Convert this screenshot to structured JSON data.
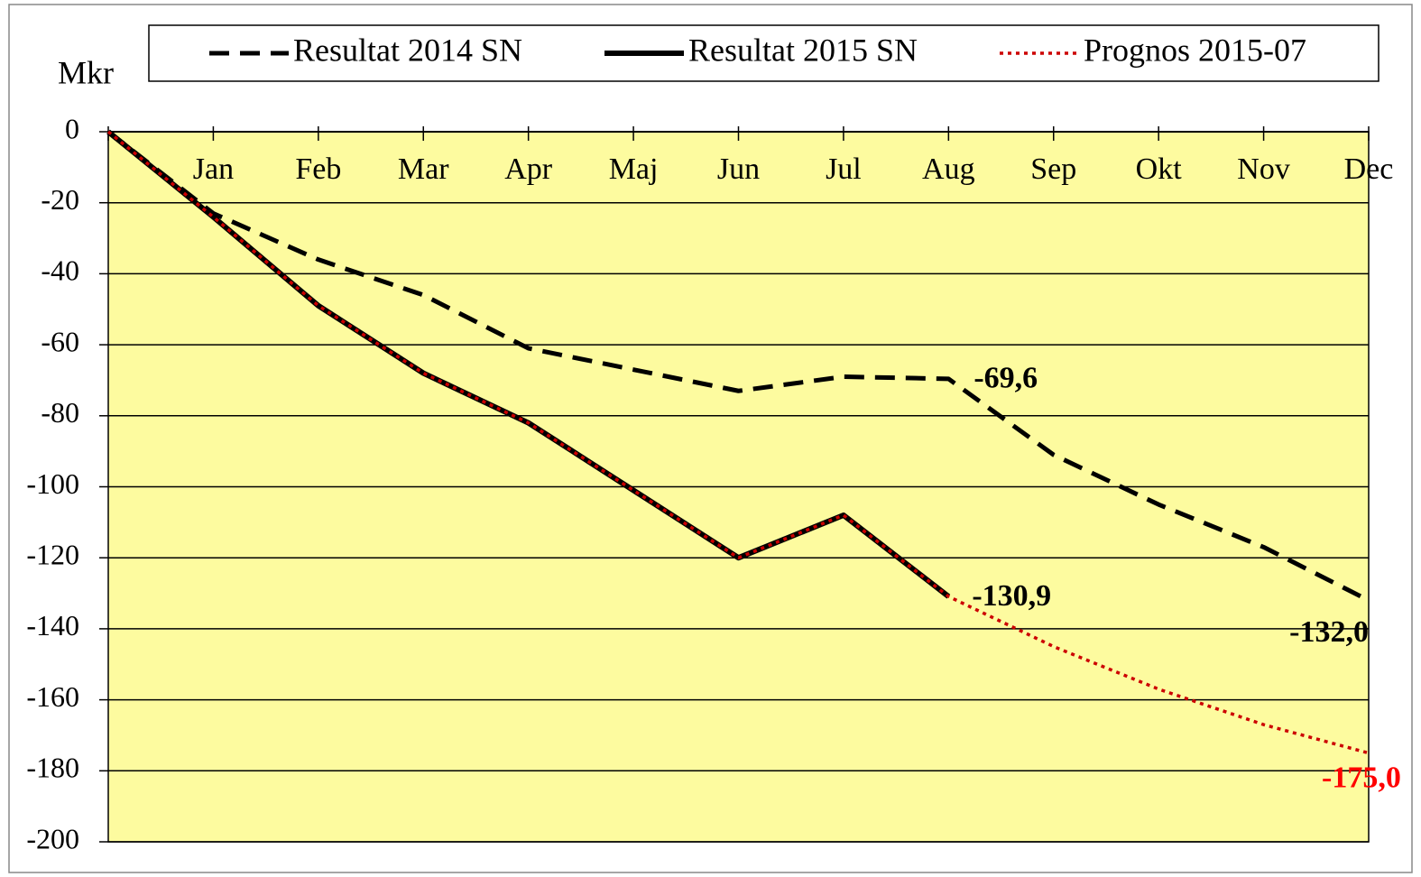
{
  "chart_data": {
    "type": "line",
    "y_label": "Mkr",
    "categories": [
      null,
      "Jan",
      "Feb",
      "Mar",
      "Apr",
      "Maj",
      "Jun",
      "Jul",
      "Aug",
      "Sep",
      "Okt",
      "Nov",
      "Dec"
    ],
    "series": [
      {
        "name": "Resultat 2014 SN",
        "color": "#000000",
        "style": "dashed",
        "values": [
          0,
          -23,
          -36,
          -46,
          -61,
          -67,
          -73,
          -69,
          -69.6,
          -91,
          -105,
          -117,
          -132
        ],
        "value_labels": [
          null,
          null,
          null,
          null,
          null,
          null,
          null,
          null,
          "-69,6",
          null,
          null,
          null,
          "-132,0"
        ]
      },
      {
        "name": "Resultat 2015 SN",
        "color": "#000000",
        "style": "solid",
        "values": [
          0,
          -24,
          -49,
          -68,
          -82,
          -101,
          -120,
          -108,
          -130.9,
          null,
          null,
          null,
          null
        ],
        "value_labels": [
          null,
          null,
          null,
          null,
          null,
          null,
          null,
          null,
          "-130,9",
          null,
          null,
          null,
          null
        ]
      },
      {
        "name": "Prognos 2015-07",
        "color": "#cc0000",
        "style": "dotted",
        "values": [
          0,
          -24,
          -49,
          -68,
          -82,
          -101,
          -120,
          -108,
          -130.9,
          -145,
          -157,
          -167,
          -175
        ],
        "value_labels": [
          null,
          null,
          null,
          null,
          null,
          null,
          null,
          null,
          null,
          null,
          null,
          null,
          "-175,0"
        ]
      }
    ],
    "ylim": [
      -200,
      0
    ],
    "yticks": [
      0,
      -20,
      -40,
      -60,
      -80,
      -100,
      -120,
      -140,
      -160,
      -180,
      -200
    ],
    "grid": true,
    "plot_color": "#fdfb9f",
    "legend": "top"
  }
}
